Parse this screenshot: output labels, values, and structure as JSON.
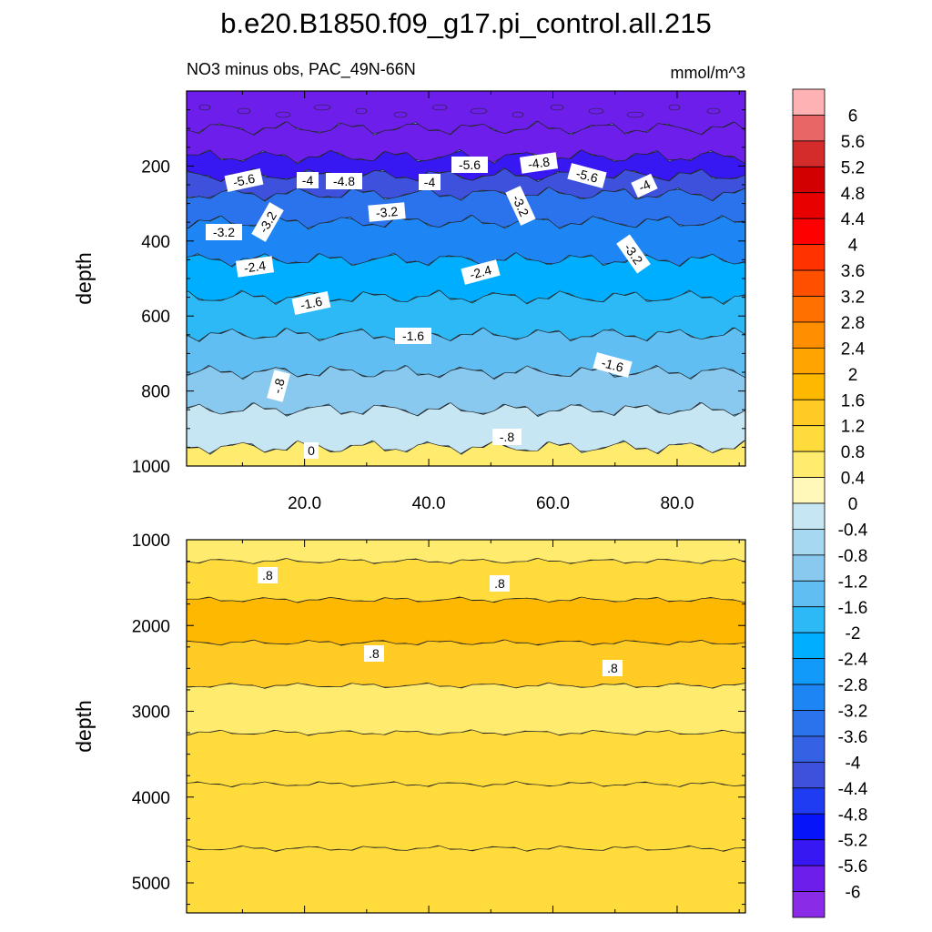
{
  "chart_data": [
    {
      "type": "contour",
      "title": "b.e20.B1850.f09_g17.pi_control.all.215",
      "subtitle_left": "NO3 minus obs, PAC_49N-66N",
      "subtitle_right": "mmol/m^3",
      "ylabel": "depth",
      "xlim": [
        1,
        91
      ],
      "ylim": [
        1000,
        0
      ],
      "x_ticks": [
        "20.0",
        "40.0",
        "60.0",
        "80.0"
      ],
      "y_ticks": [
        "200",
        "400",
        "600",
        "800",
        "1000"
      ],
      "contour_labels": [
        "-5.6",
        "-4",
        "-4.8",
        "-4",
        "-5.6",
        "-4.8",
        "-5.6",
        "-4",
        "-3.2",
        "-3.2",
        "-3.2",
        "-3.2",
        "-3.2",
        "-2.4",
        "-2.4",
        "-1.6",
        "-1.6",
        "-1.6",
        "-.8",
        "-.8",
        "0"
      ],
      "depth_profile": [
        {
          "depth": 50,
          "value": -6.0
        },
        {
          "depth": 150,
          "value": -5.9
        },
        {
          "depth": 200,
          "value": -5.6
        },
        {
          "depth": 250,
          "value": -4.6
        },
        {
          "depth": 300,
          "value": -3.6
        },
        {
          "depth": 400,
          "value": -3.0
        },
        {
          "depth": 500,
          "value": -2.2
        },
        {
          "depth": 600,
          "value": -1.8
        },
        {
          "depth": 700,
          "value": -1.5
        },
        {
          "depth": 800,
          "value": -1.2
        },
        {
          "depth": 900,
          "value": -0.6
        },
        {
          "depth": 1000,
          "value": 0.3
        }
      ]
    },
    {
      "type": "contour",
      "ylabel": "depth",
      "ylim": [
        1000,
        5350
      ],
      "y_ticks": [
        "1000",
        "2000",
        "3000",
        "4000",
        "5000"
      ],
      "contour_labels": [
        ".8",
        ".8",
        ".8",
        ".8"
      ],
      "depth_profile": [
        {
          "depth": 1100,
          "value": 0.4
        },
        {
          "depth": 1400,
          "value": 0.8
        },
        {
          "depth": 2000,
          "value": 1.3
        },
        {
          "depth": 2400,
          "value": 0.9
        },
        {
          "depth": 3000,
          "value": 0.3
        },
        {
          "depth": 3500,
          "value": 0.5
        },
        {
          "depth": 4200,
          "value": 0.5
        },
        {
          "depth": 5000,
          "value": 0.5
        }
      ]
    }
  ],
  "colorbar": {
    "labels": [
      "6",
      "5.6",
      "5.2",
      "4.8",
      "4.4",
      "4",
      "3.6",
      "3.2",
      "2.8",
      "2.4",
      "2",
      "1.6",
      "1.2",
      "0.8",
      "0.4",
      "0",
      "-0.4",
      "-0.8",
      "-1.2",
      "-1.6",
      "-2",
      "-2.4",
      "-2.8",
      "-3.2",
      "-3.6",
      "-4",
      "-4.4",
      "-4.8",
      "-5.2",
      "-5.6",
      "-6"
    ],
    "colors": [
      "#FFB2B3",
      "#E86666",
      "#D42B2B",
      "#D20000",
      "#E80000",
      "#FF0000",
      "#FF3200",
      "#FF5000",
      "#FF7000",
      "#FF8F00",
      "#FFA400",
      "#FFB800",
      "#FFCB24",
      "#FFDC3C",
      "#FFEB6E",
      "#FFF8B8",
      "#C6E6F4",
      "#A6D8F1",
      "#8AC9EF",
      "#60BEF3",
      "#2CB9F6",
      "#00AEFF",
      "#129AFA",
      "#1E86F4",
      "#2A73EC",
      "#3561E4",
      "#3D51DC",
      "#203CF2",
      "#0614FA",
      "#3818F2",
      "#6E1EEA",
      "#8A2BE8"
    ]
  }
}
